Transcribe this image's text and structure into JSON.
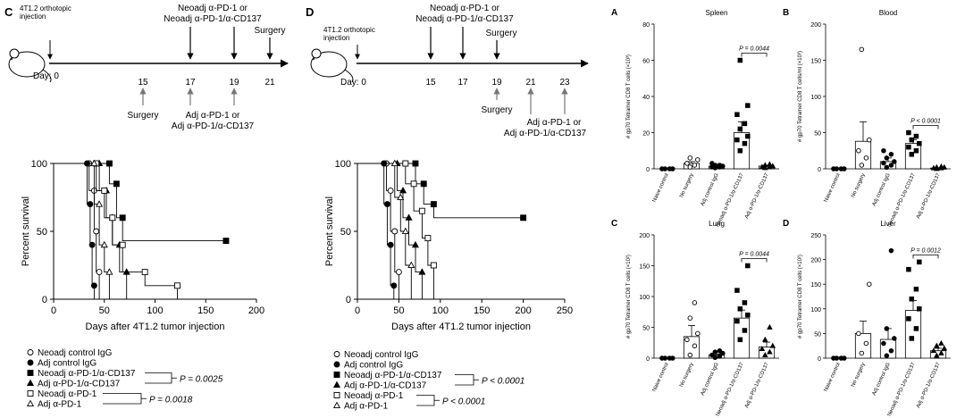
{
  "panel_c": {
    "label": "C",
    "injection_text": [
      "4T1.2 orthotopic",
      "injection"
    ],
    "day_prefix": "Day: 0",
    "days": [
      "15",
      "17",
      "19",
      "21"
    ],
    "top_label": [
      "Neoadj α-PD-1 or",
      "Neoadj α-PD-1/α-CD137"
    ],
    "surgery_top": "Surgery",
    "surgery_bottom": "Surgery",
    "adj_label": [
      "Adj α-PD-1 or",
      "Adj α-PD-1/α-CD137"
    ]
  },
  "panel_d": {
    "label": "D",
    "injection_text": [
      "4T1.2 orthotopic",
      "injection"
    ],
    "day_prefix": "Day: 0",
    "days": [
      "15",
      "17",
      "19",
      "21",
      "23"
    ],
    "top_label": [
      "Neoadj α-PD-1 or",
      "Neoadj α-PD-1/α-CD137"
    ],
    "surgery_top": "Surgery",
    "surgery_bottom": "Surgery",
    "adj_label": [
      "Adj α-PD-1 or",
      "Adj α-PD-1/α-CD137"
    ]
  },
  "legend_c": {
    "items": [
      "Neoadj control IgG",
      "Adj control IgG",
      "Neoadj α-PD-1/α-CD137",
      "Adj α-PD-1/α-CD137",
      "Neoadj α-PD-1",
      "Adj α-PD-1"
    ],
    "p1": "P = 0.0025",
    "p2": "P = 0.0018"
  },
  "legend_d": {
    "items": [
      "Neoadj control IgG",
      "Adj control IgG",
      "Neoadj α-PD-1/α-CD137",
      "Adj α-PD-1/α-CD137",
      "Neoadj α-PD-1",
      "Adj α-PD-1"
    ],
    "p1": "P < 0.0001",
    "p2": "P < 0.0001"
  },
  "chart_data": [
    {
      "type": "line",
      "panel": "C",
      "ylabel": "Percent survival",
      "xlabel": "Days after 4T1.2 tumor injection",
      "xlim": [
        0,
        200
      ],
      "ylim": [
        0,
        100
      ],
      "xticks": [
        "0",
        "50",
        "100",
        "150",
        "200"
      ],
      "yticks": [
        "0",
        "50",
        "100"
      ],
      "series": [
        {
          "name": "Neoadj control IgG",
          "marker": "open-circle",
          "steps": [
            [
              0,
              100
            ],
            [
              35,
              100
            ],
            [
              35,
              80
            ],
            [
              40,
              80
            ],
            [
              40,
              50
            ],
            [
              42,
              50
            ],
            [
              42,
              20
            ],
            [
              45,
              20
            ],
            [
              45,
              0
            ]
          ]
        },
        {
          "name": "Adj control IgG",
          "marker": "filled-circle",
          "steps": [
            [
              0,
              100
            ],
            [
              33,
              100
            ],
            [
              33,
              70
            ],
            [
              36,
              70
            ],
            [
              36,
              40
            ],
            [
              38,
              40
            ],
            [
              38,
              10
            ],
            [
              40,
              10
            ],
            [
              40,
              0
            ]
          ]
        },
        {
          "name": "Neoadj α-PD-1/α-CD137",
          "marker": "filled-square",
          "steps": [
            [
              0,
              100
            ],
            [
              55,
              100
            ],
            [
              55,
              85
            ],
            [
              62,
              85
            ],
            [
              62,
              60
            ],
            [
              68,
              60
            ],
            [
              68,
              43
            ],
            [
              170,
              43
            ]
          ]
        },
        {
          "name": "Adj α-PD-1/α-CD137",
          "marker": "filled-triangle",
          "steps": [
            [
              0,
              100
            ],
            [
              45,
              100
            ],
            [
              45,
              80
            ],
            [
              52,
              80
            ],
            [
              52,
              60
            ],
            [
              58,
              60
            ],
            [
              58,
              40
            ],
            [
              65,
              40
            ],
            [
              65,
              20
            ],
            [
              72,
              20
            ],
            [
              72,
              0
            ]
          ]
        },
        {
          "name": "Neoadj α-PD-1",
          "marker": "open-square",
          "steps": [
            [
              0,
              100
            ],
            [
              42,
              100
            ],
            [
              42,
              80
            ],
            [
              50,
              80
            ],
            [
              50,
              60
            ],
            [
              58,
              60
            ],
            [
              58,
              40
            ],
            [
              68,
              40
            ],
            [
              68,
              20
            ],
            [
              90,
              20
            ],
            [
              90,
              10
            ],
            [
              122,
              10
            ],
            [
              122,
              0
            ]
          ]
        },
        {
          "name": "Adj α-PD-1",
          "marker": "open-triangle",
          "steps": [
            [
              0,
              100
            ],
            [
              40,
              100
            ],
            [
              40,
              70
            ],
            [
              45,
              70
            ],
            [
              45,
              40
            ],
            [
              50,
              40
            ],
            [
              50,
              20
            ],
            [
              55,
              20
            ],
            [
              55,
              0
            ]
          ]
        }
      ]
    },
    {
      "type": "line",
      "panel": "D",
      "ylabel": "Percent survival",
      "xlabel": "Days after 4T1.2 tumor injection",
      "xlim": [
        0,
        250
      ],
      "ylim": [
        0,
        100
      ],
      "xticks": [
        "0",
        "50",
        "100",
        "150",
        "200",
        "250"
      ],
      "yticks": [
        "0",
        "50",
        "100"
      ],
      "series": [
        {
          "name": "Neoadj control IgG",
          "marker": "open-circle",
          "steps": [
            [
              0,
              100
            ],
            [
              35,
              100
            ],
            [
              35,
              80
            ],
            [
              40,
              80
            ],
            [
              40,
              50
            ],
            [
              45,
              50
            ],
            [
              45,
              20
            ],
            [
              50,
              20
            ],
            [
              50,
              0
            ]
          ]
        },
        {
          "name": "Adj control IgG",
          "marker": "filled-circle",
          "steps": [
            [
              0,
              100
            ],
            [
              32,
              100
            ],
            [
              32,
              70
            ],
            [
              36,
              70
            ],
            [
              36,
              40
            ],
            [
              40,
              40
            ],
            [
              40,
              10
            ],
            [
              44,
              10
            ],
            [
              44,
              0
            ]
          ]
        },
        {
          "name": "Neoadj α-PD-1/α-CD137",
          "marker": "filled-square",
          "steps": [
            [
              0,
              100
            ],
            [
              70,
              100
            ],
            [
              70,
              85
            ],
            [
              80,
              85
            ],
            [
              80,
              70
            ],
            [
              92,
              70
            ],
            [
              92,
              60
            ],
            [
              200,
              60
            ]
          ]
        },
        {
          "name": "Adj α-PD-1/α-CD137",
          "marker": "filled-triangle",
          "steps": [
            [
              0,
              100
            ],
            [
              48,
              100
            ],
            [
              48,
              80
            ],
            [
              55,
              80
            ],
            [
              55,
              60
            ],
            [
              62,
              60
            ],
            [
              62,
              40
            ],
            [
              70,
              40
            ],
            [
              70,
              20
            ],
            [
              78,
              20
            ],
            [
              78,
              0
            ]
          ]
        },
        {
          "name": "Neoadj α-PD-1",
          "marker": "open-square",
          "steps": [
            [
              0,
              100
            ],
            [
              58,
              100
            ],
            [
              58,
              85
            ],
            [
              68,
              85
            ],
            [
              68,
              65
            ],
            [
              78,
              65
            ],
            [
              78,
              45
            ],
            [
              85,
              45
            ],
            [
              85,
              25
            ],
            [
              92,
              25
            ],
            [
              92,
              0
            ]
          ]
        },
        {
          "name": "Adj α-PD-1",
          "marker": "open-triangle",
          "steps": [
            [
              0,
              100
            ],
            [
              45,
              100
            ],
            [
              45,
              75
            ],
            [
              52,
              75
            ],
            [
              52,
              50
            ],
            [
              58,
              50
            ],
            [
              58,
              25
            ],
            [
              65,
              25
            ],
            [
              65,
              0
            ]
          ]
        }
      ]
    },
    {
      "type": "scatter",
      "panel": "A",
      "title": "Spleen",
      "ylabel": "# gp70 Tetramer CD8 T cells (×10³)",
      "ylim": [
        0,
        80
      ],
      "yticks": [
        "0",
        "20",
        "40",
        "60",
        "80"
      ],
      "categories": [
        "Naive control",
        "No surgery",
        "Adj control IgG",
        "Neoadj α-PD-1/α-CD137",
        "Adj α-PD-1/α-CD137"
      ],
      "markers": [
        "filled-circle",
        "open-circle",
        "filled-circle",
        "filled-square",
        "filled-triangle"
      ],
      "means": [
        0,
        3,
        1.5,
        20,
        1.5
      ],
      "sems": [
        0,
        1,
        0.5,
        6,
        0.5
      ],
      "points": [
        [
          0,
          0,
          0,
          0
        ],
        [
          1,
          2,
          3,
          5,
          6
        ],
        [
          0.5,
          1,
          1,
          1.5,
          2,
          2,
          3
        ],
        [
          10,
          14,
          16,
          18,
          22,
          25,
          30,
          35,
          60
        ],
        [
          0.5,
          1,
          1,
          1.5,
          2,
          2.5
        ]
      ],
      "annotation": "P = 0.0044"
    },
    {
      "type": "scatter",
      "panel": "B",
      "title": "Blood",
      "ylabel": "# gp70 Tetramer CD8 T cells/ml (×10³)",
      "ylim": [
        0,
        200
      ],
      "yticks": [
        "0",
        "50",
        "100",
        "150",
        "200"
      ],
      "categories": [
        "Naive control",
        "No surgery",
        "Adj control IgG",
        "Neoadj α-PD-1/α-CD137",
        "Adj α-PD-1/α-CD137"
      ],
      "markers": [
        "filled-circle",
        "open-circle",
        "filled-circle",
        "filled-square",
        "filled-triangle"
      ],
      "means": [
        0,
        38,
        10,
        35,
        1
      ],
      "sems": [
        0,
        27,
        5,
        5,
        0.5
      ],
      "points": [
        [
          0,
          0,
          0,
          0
        ],
        [
          5,
          15,
          25,
          40,
          165
        ],
        [
          2,
          5,
          8,
          10,
          15,
          20,
          25
        ],
        [
          20,
          25,
          30,
          35,
          40,
          45,
          50
        ],
        [
          0,
          1,
          1,
          2,
          2,
          3
        ]
      ],
      "annotation": "P < 0.0001"
    },
    {
      "type": "scatter",
      "panel": "C",
      "title": "Lung",
      "ylabel": "# gp70 Tetramer CD8 T cells (×10²)",
      "ylim": [
        0,
        200
      ],
      "yticks": [
        "0",
        "50",
        "100",
        "150",
        "200"
      ],
      "categories": [
        "Naive control",
        "No surgery",
        "Adj control IgG",
        "Neoadj α-PD-1/α-CD137",
        "Adj α-PD-1/α-CD137"
      ],
      "markers": [
        "filled-circle",
        "open-circle",
        "filled-circle",
        "filled-square",
        "filled-triangle"
      ],
      "means": [
        0,
        35,
        5,
        65,
        18
      ],
      "sems": [
        0,
        18,
        2,
        13,
        8
      ],
      "points": [
        [
          0,
          0,
          0,
          0
        ],
        [
          5,
          20,
          30,
          40,
          65,
          90
        ],
        [
          1,
          3,
          5,
          8,
          10,
          12
        ],
        [
          30,
          45,
          60,
          70,
          80,
          90,
          110,
          150
        ],
        [
          5,
          10,
          15,
          20,
          30,
          50
        ]
      ],
      "annotation": "P = 0.0044"
    },
    {
      "type": "scatter",
      "panel": "D",
      "title": "Liver",
      "ylabel": "# gp70 Tetramer CD8 T cells (×10²)",
      "ylim": [
        0,
        250
      ],
      "yticks": [
        "0",
        "50",
        "100",
        "150",
        "200",
        "250"
      ],
      "categories": [
        "Naive control",
        "No surgery",
        "Adj control IgG",
        "Neoadj α-PD-1/α-CD137",
        "Adj α-PD-1/α-CD137"
      ],
      "markers": [
        "filled-circle",
        "open-circle",
        "filled-circle",
        "filled-square",
        "filled-triangle"
      ],
      "means": [
        0,
        50,
        38,
        97,
        15
      ],
      "sems": [
        0,
        25,
        22,
        20,
        5
      ],
      "points": [
        [
          0,
          0,
          0,
          0
        ],
        [
          10,
          30,
          50,
          150
        ],
        [
          5,
          15,
          30,
          40,
          60,
          218
        ],
        [
          40,
          60,
          80,
          100,
          120,
          140,
          180,
          195
        ],
        [
          5,
          10,
          15,
          20,
          25,
          30
        ]
      ],
      "annotation": "P = 0.0012"
    }
  ]
}
